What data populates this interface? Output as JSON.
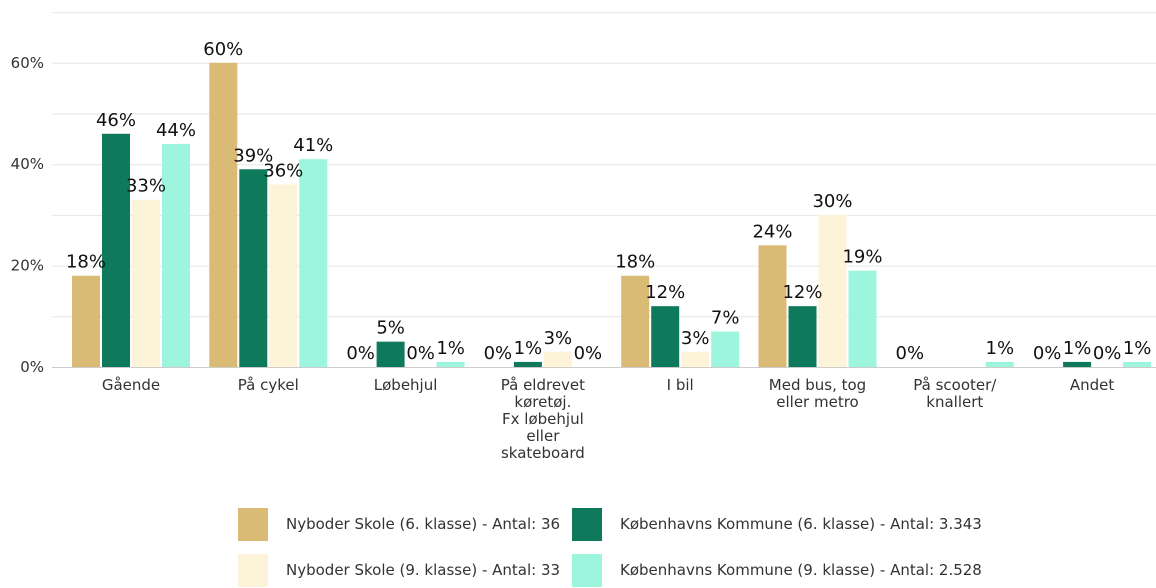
{
  "chart_data": {
    "type": "bar",
    "categories": [
      "Gående",
      "På cykel",
      "Løbehjul",
      "På eldrevet køretøj. Fx løbehjul eller skateboard",
      "I bil",
      "Med bus, tog eller metro",
      "På scooter/ knallert",
      "Andet"
    ],
    "category_lines": [
      [
        "Gående"
      ],
      [
        "På cykel"
      ],
      [
        "Løbehjul"
      ],
      [
        "På eldrevet",
        "køretøj.",
        "Fx løbehjul",
        "eller",
        "skateboard"
      ],
      [
        "I bil"
      ],
      [
        "Med bus, tog",
        "eller metro"
      ],
      [
        "På scooter/",
        "knallert"
      ],
      [
        "Andet"
      ]
    ],
    "series": [
      {
        "name": "Nyboder Skole (6. klasse) - Antal: 36",
        "color": "#d9bb76",
        "values": [
          18,
          60,
          0,
          0,
          18,
          24,
          0,
          0
        ],
        "labels": [
          "18%",
          "60%",
          "0%",
          "0%",
          "18%",
          "24%",
          "0%",
          "0%"
        ]
      },
      {
        "name": "Københavns Kommune (6. klasse) - Antal: 3.343",
        "color": "#0f7a5b",
        "values": [
          46,
          39,
          5,
          1,
          12,
          12,
          0,
          1
        ],
        "labels": [
          "46%",
          "39%",
          "5%",
          "1%",
          "12%",
          "12%",
          "",
          "1%"
        ]
      },
      {
        "name": "Nyboder Skole (9. klasse) - Antal: 33",
        "color": "#fdf3d8",
        "values": [
          33,
          36,
          0,
          3,
          3,
          30,
          0,
          0
        ],
        "labels": [
          "33%",
          "36%",
          "0%",
          "3%",
          "3%",
          "30%",
          "",
          "0%"
        ]
      },
      {
        "name": "Københavns Kommune (9. klasse) - Antal: 2.528",
        "color": "#9ef5dd",
        "values": [
          44,
          41,
          1,
          0,
          7,
          19,
          1,
          1
        ],
        "labels": [
          "44%",
          "41%",
          "1%",
          "0%",
          "7%",
          "19%",
          "1%",
          "1%"
        ]
      }
    ],
    "yticks": [
      {
        "value": 0,
        "label": "0%"
      },
      {
        "value": 20,
        "label": "20%"
      },
      {
        "value": 40,
        "label": "40%"
      },
      {
        "value": 60,
        "label": "60%"
      }
    ],
    "ylim": [
      0,
      70
    ],
    "xlabel": "",
    "ylabel": "",
    "grid": true,
    "legend_position": "bottom"
  }
}
